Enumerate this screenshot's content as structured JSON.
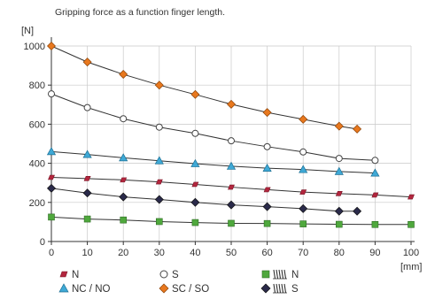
{
  "chart_data": {
    "type": "line",
    "title": "Gripping force as a function finger length.",
    "ylabel": "[N]",
    "xlabel": "[mm]",
    "xlim": [
      0,
      100
    ],
    "ylim": [
      0,
      1000
    ],
    "x_ticks": [
      "0",
      "10",
      "20",
      "30",
      "40",
      "50",
      "60",
      "70",
      "80",
      "90",
      "100"
    ],
    "y_ticks": [
      "0",
      "200",
      "400",
      "600",
      "800",
      "1000"
    ],
    "grid": true,
    "legend_position": "bottom",
    "series": [
      {
        "name": "N",
        "marker": "parallelogram",
        "color": "#b3263e",
        "x": [
          0,
          10,
          20,
          30,
          40,
          50,
          60,
          70,
          80,
          90,
          100
        ],
        "values": [
          328,
          322,
          315,
          305,
          292,
          278,
          265,
          253,
          245,
          238,
          228
        ]
      },
      {
        "name": "S",
        "marker": "circle",
        "color": "#ffffff",
        "x": [
          0,
          10,
          20,
          30,
          40,
          50,
          60,
          70,
          80,
          90
        ],
        "values": [
          755,
          685,
          628,
          585,
          553,
          515,
          485,
          458,
          425,
          415
        ]
      },
      {
        "name": "N",
        "marker": "square-spring",
        "color": "#4fa83d",
        "x": [
          0,
          10,
          20,
          30,
          40,
          50,
          60,
          70,
          80,
          90,
          100
        ],
        "values": [
          125,
          115,
          110,
          102,
          97,
          93,
          92,
          90,
          88,
          87,
          87
        ]
      },
      {
        "name": "NC / NO",
        "marker": "triangle",
        "color": "#3fa9d6",
        "x": [
          0,
          10,
          20,
          30,
          40,
          50,
          60,
          70,
          80,
          90
        ],
        "values": [
          460,
          445,
          428,
          413,
          398,
          385,
          375,
          368,
          358,
          350
        ]
      },
      {
        "name": "SC / SO",
        "marker": "diamond",
        "color": "#e8781e",
        "x": [
          0,
          10,
          20,
          30,
          40,
          50,
          60,
          70,
          80,
          85
        ],
        "values": [
          1000,
          918,
          855,
          800,
          752,
          702,
          660,
          625,
          590,
          575
        ]
      },
      {
        "name": "S",
        "marker": "diamond-spring",
        "color": "#2a2a4a",
        "x": [
          0,
          10,
          20,
          30,
          40,
          50,
          60,
          70,
          80,
          85
        ],
        "values": [
          272,
          248,
          228,
          215,
          200,
          187,
          178,
          168,
          155,
          155
        ]
      }
    ]
  }
}
